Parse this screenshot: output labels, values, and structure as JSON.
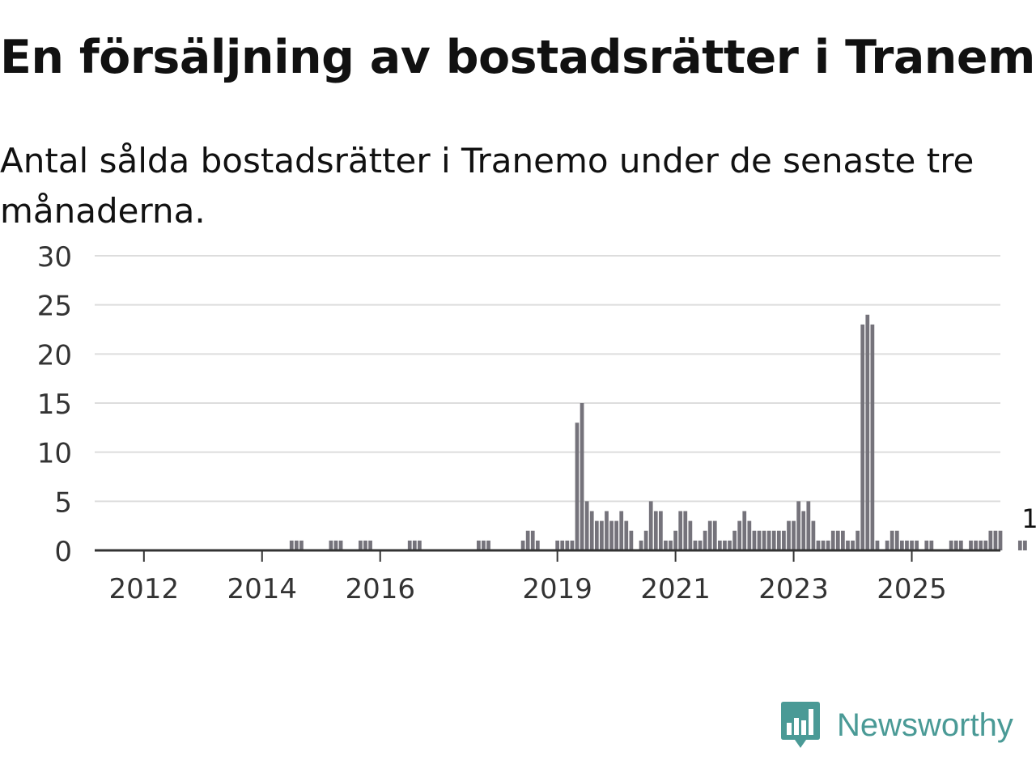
{
  "title": "En försäljning av bostadsrätter i Tranemo",
  "subtitle": "Antal sålda bostadsrätter i Tranemo under de senaste tre månaderna.",
  "brand": {
    "name": "Newsworthy",
    "logo_icon": "newsworthy-bar-chart-logo-icon",
    "color": "#4a9a96"
  },
  "colors": {
    "bar": "#75737b",
    "highlight": "#2e9c9a",
    "grid": "#dddddd",
    "axis": "#333333"
  },
  "chart_data": {
    "type": "bar",
    "title": "En försäljning av bostadsrätter i Tranemo",
    "subtitle": "Antal sålda bostadsrätter i Tranemo under de senaste tre månaderna.",
    "xlabel": "",
    "ylabel": "",
    "ylim": [
      0,
      30
    ],
    "yticks": [
      0,
      5,
      10,
      15,
      20,
      25,
      30
    ],
    "xrange": [
      "2011-03",
      "2026-07"
    ],
    "xtick_labels": [
      {
        "label": "2012",
        "month": "2012-01"
      },
      {
        "label": "2014",
        "month": "2014-01"
      },
      {
        "label": "2016",
        "month": "2016-01"
      },
      {
        "label": "2019",
        "month": "2019-01"
      },
      {
        "label": "2021",
        "month": "2021-01"
      },
      {
        "label": "2023",
        "month": "2023-01"
      },
      {
        "label": "2025",
        "month": "2025-01"
      }
    ],
    "grid": true,
    "series": [
      {
        "name": "Antal sålda bostadsrätter",
        "start_month": "2014-07",
        "values": [
          1,
          1,
          1,
          0,
          0,
          0,
          0,
          0,
          1,
          1,
          1,
          0,
          0,
          0,
          1,
          1,
          1,
          0,
          0,
          0,
          0,
          0,
          0,
          0,
          1,
          1,
          1,
          0,
          0,
          0,
          0,
          0,
          0,
          0,
          0,
          0,
          0,
          0,
          1,
          1,
          1,
          0,
          0,
          0,
          0,
          0,
          0,
          1,
          2,
          2,
          1,
          0,
          0,
          0,
          1,
          1,
          1,
          1,
          13,
          15,
          5,
          4,
          3,
          3,
          4,
          3,
          3,
          4,
          3,
          2,
          0,
          1,
          2,
          5,
          4,
          4,
          1,
          1,
          2,
          4,
          4,
          3,
          1,
          1,
          2,
          3,
          3,
          1,
          1,
          1,
          2,
          3,
          4,
          3,
          2,
          2,
          2,
          2,
          2,
          2,
          2,
          3,
          3,
          5,
          4,
          5,
          3,
          1,
          1,
          1,
          2,
          2,
          2,
          1,
          1,
          2,
          23,
          24,
          23,
          1,
          0,
          1,
          2,
          2,
          1,
          1,
          1,
          1,
          0,
          1,
          1,
          0,
          0,
          0,
          1,
          1,
          1,
          0,
          1,
          1,
          1,
          1,
          2,
          2,
          2,
          0,
          0,
          0,
          1,
          1
        ]
      }
    ],
    "highlight": {
      "index": 150,
      "value": 1,
      "label": "1"
    }
  }
}
